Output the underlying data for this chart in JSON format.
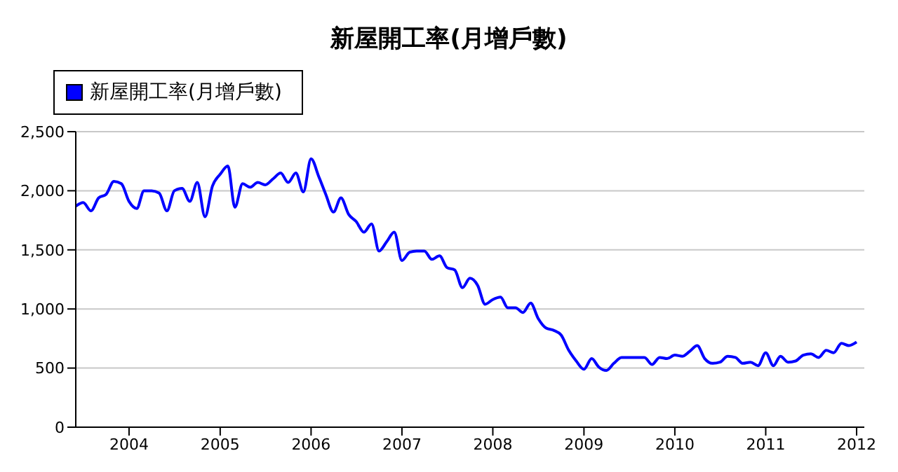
{
  "chart_data": {
    "type": "line",
    "title": "新屋開工率(月增戶數)",
    "x": [
      "2003-06",
      "2003-07",
      "2003-08",
      "2003-09",
      "2003-10",
      "2003-11",
      "2003-12",
      "2004-01",
      "2004-02",
      "2004-03",
      "2004-04",
      "2004-05",
      "2004-06",
      "2004-07",
      "2004-08",
      "2004-09",
      "2004-10",
      "2004-11",
      "2004-12",
      "2005-01",
      "2005-02",
      "2005-03",
      "2005-04",
      "2005-05",
      "2005-06",
      "2005-07",
      "2005-08",
      "2005-09",
      "2005-10",
      "2005-11",
      "2005-12",
      "2006-01",
      "2006-02",
      "2006-03",
      "2006-04",
      "2006-05",
      "2006-06",
      "2006-07",
      "2006-08",
      "2006-09",
      "2006-10",
      "2006-11",
      "2006-12",
      "2007-01",
      "2007-02",
      "2007-03",
      "2007-04",
      "2007-05",
      "2007-06",
      "2007-07",
      "2007-08",
      "2007-09",
      "2007-10",
      "2007-11",
      "2007-12",
      "2008-01",
      "2008-02",
      "2008-03",
      "2008-04",
      "2008-05",
      "2008-06",
      "2008-07",
      "2008-08",
      "2008-09",
      "2008-10",
      "2008-11",
      "2008-12",
      "2009-01",
      "2009-02",
      "2009-03",
      "2009-04",
      "2009-05",
      "2009-06",
      "2009-07",
      "2009-08",
      "2009-09",
      "2009-10",
      "2009-11",
      "2009-12",
      "2010-01",
      "2010-02",
      "2010-03",
      "2010-04",
      "2010-05",
      "2010-06",
      "2010-07",
      "2010-08",
      "2010-09",
      "2010-10",
      "2010-11",
      "2010-12",
      "2011-01",
      "2011-02",
      "2011-03",
      "2011-04",
      "2011-05",
      "2011-06",
      "2011-07",
      "2011-08",
      "2011-09",
      "2011-10",
      "2011-11",
      "2011-12",
      "2012-01"
    ],
    "series": [
      {
        "name": "新屋開工率(月增戶數)",
        "color": "#0000ff",
        "values": [
          1870,
          1900,
          1830,
          1940,
          1970,
          2080,
          2060,
          1910,
          1850,
          2000,
          2000,
          1980,
          1830,
          2000,
          2020,
          1910,
          2070,
          1780,
          2040,
          2140,
          2210,
          1860,
          2060,
          2030,
          2070,
          2050,
          2100,
          2150,
          2070,
          2150,
          1990,
          2270,
          2120,
          1970,
          1820,
          1940,
          1800,
          1740,
          1650,
          1720,
          1490,
          1570,
          1650,
          1410,
          1480,
          1490,
          1490,
          1420,
          1450,
          1350,
          1330,
          1180,
          1260,
          1200,
          1040,
          1080,
          1100,
          1010,
          1010,
          970,
          1050,
          920,
          840,
          820,
          780,
          650,
          560,
          490,
          580,
          510,
          480,
          540,
          590,
          590,
          590,
          590,
          530,
          590,
          580,
          610,
          600,
          640,
          690,
          580,
          540,
          550,
          600,
          590,
          540,
          550,
          520,
          630,
          520,
          600,
          550,
          560,
          610,
          620,
          590,
          650,
          630,
          710,
          690,
          720
        ]
      }
    ],
    "xlim": [
      "2003-06",
      "2012-02"
    ],
    "xticks": [
      "2004",
      "2005",
      "2006",
      "2007",
      "2008",
      "2009",
      "2010",
      "2011",
      "2012"
    ],
    "ylim": [
      0,
      2500
    ],
    "yticks": [
      0,
      500,
      {
        "value": 1000,
        "label": "1,000"
      },
      {
        "value": 1500,
        "label": "1,500"
      },
      {
        "value": 2000,
        "label": "2,000"
      },
      {
        "value": 2500,
        "label": "2,500"
      }
    ],
    "grid": "y",
    "legend": "top left",
    "marker": "none",
    "line_style": "solid"
  }
}
